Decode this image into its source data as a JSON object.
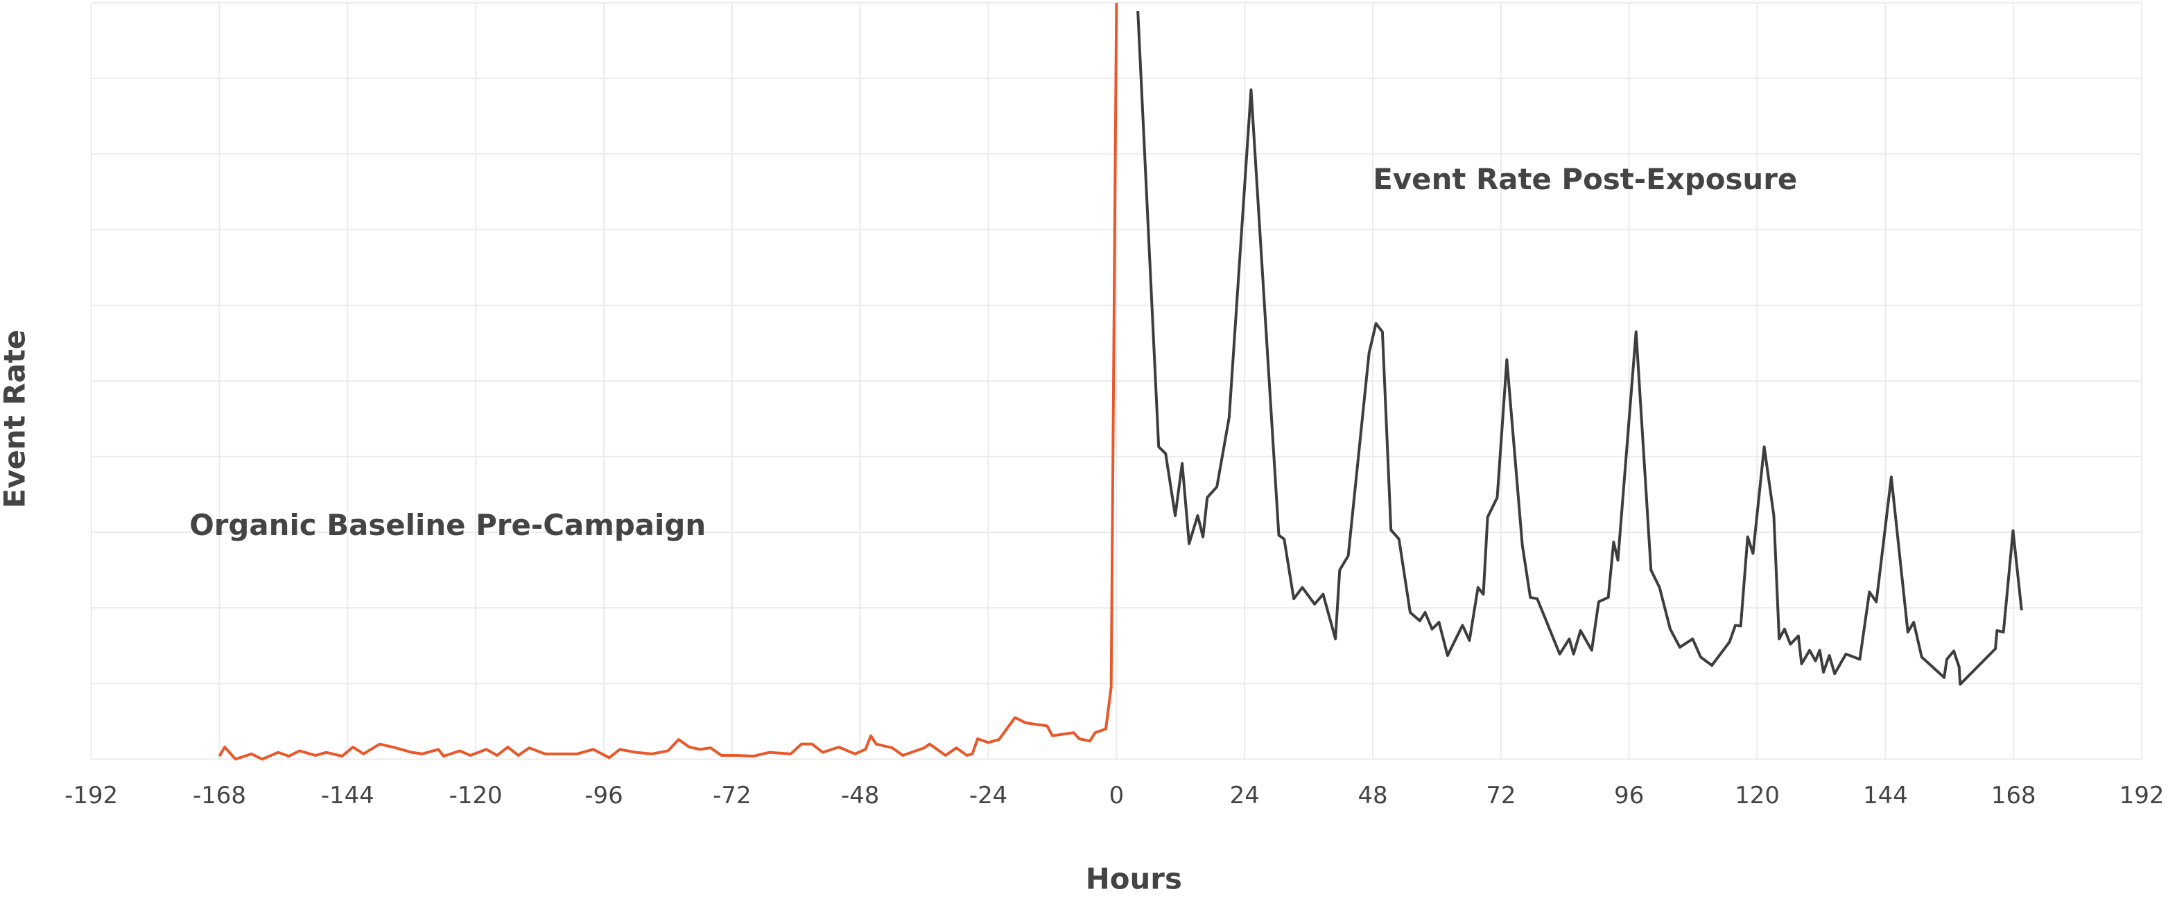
{
  "chart_data": {
    "type": "line",
    "x_label": "Hours",
    "y_label": "Event Rate",
    "xlim": [
      -192,
      192
    ],
    "xticks": [
      -192,
      -168,
      -144,
      -120,
      -96,
      -72,
      -48,
      -24,
      0,
      24,
      48,
      72,
      96,
      120,
      144,
      168,
      192
    ],
    "ylim": [
      0,
      10
    ],
    "yticks": [
      0,
      1,
      2,
      3,
      4,
      5,
      6,
      7,
      8,
      9,
      10
    ],
    "ytick_labels": false,
    "grid": true,
    "series": [
      {
        "name": "Organic Baseline Pre-Campaign",
        "color": "#e8582a",
        "x": [
          -168,
          -167,
          -165,
          -162,
          -160,
          -157,
          -155,
          -153,
          -150,
          -148,
          -145,
          -143,
          -141,
          -138,
          -135,
          -132,
          -130,
          -127,
          -126,
          -123,
          -121,
          -118,
          -116,
          -114,
          -112,
          -110,
          -107,
          -104,
          -101,
          -98,
          -95,
          -93,
          -90,
          -87,
          -84,
          -82,
          -80,
          -78,
          -76,
          -74,
          -71,
          -68,
          -65,
          -61,
          -59,
          -57,
          -55,
          -52,
          -49,
          -47,
          -46,
          -45,
          -42,
          -40,
          -36,
          -35,
          -32,
          -30,
          -28,
          -27,
          -26,
          -24,
          -22,
          -19,
          -17,
          -13,
          -12,
          -8,
          -7,
          -5,
          -4,
          -2,
          -1,
          0
        ],
        "values": [
          0.04,
          0.16,
          0,
          0.07,
          0,
          0.09,
          0.04,
          0.11,
          0.05,
          0.09,
          0.04,
          0.16,
          0.07,
          0.2,
          0.15,
          0.09,
          0.07,
          0.13,
          0.04,
          0.11,
          0.05,
          0.13,
          0.05,
          0.16,
          0.05,
          0.15,
          0.07,
          0.07,
          0.07,
          0.13,
          0.02,
          0.13,
          0.09,
          0.07,
          0.11,
          0.26,
          0.16,
          0.13,
          0.15,
          0.05,
          0.05,
          0.04,
          0.09,
          0.07,
          0.2,
          0.2,
          0.09,
          0.16,
          0.07,
          0.13,
          0.31,
          0.2,
          0.15,
          0.05,
          0.15,
          0.2,
          0.05,
          0.15,
          0.05,
          0.07,
          0.27,
          0.22,
          0.26,
          0.55,
          0.48,
          0.44,
          0.31,
          0.35,
          0.27,
          0.24,
          0.35,
          0.4,
          0.95,
          10
        ]
      },
      {
        "name": "Event Rate Post-Exposure",
        "color": "#3d3d3d",
        "x": [
          4,
          7.9,
          9.2,
          11,
          12.3,
          13.6,
          15.2,
          16.2,
          17,
          18.8,
          21.1,
          25.2,
          30.4,
          31.4,
          33.2,
          34.8,
          37.1,
          38.7,
          41,
          41.8,
          43.4,
          47.3,
          48.6,
          49.8,
          51.4,
          52.9,
          55,
          56.8,
          57.8,
          59.1,
          60.4,
          62,
          64.8,
          66.1,
          67.7,
          68.7,
          69.5,
          71.3,
          73.1,
          76,
          77.5,
          78.8,
          83,
          84.8,
          85.6,
          86.9,
          89,
          90.3,
          92.1,
          93.1,
          93.9,
          97.3,
          100.1,
          101.7,
          103.7,
          105.5,
          107.9,
          109.4,
          111.5,
          114.8,
          115.9,
          116.9,
          118.2,
          119.2,
          121.3,
          123.1,
          124.1,
          125.1,
          126.2,
          127.7,
          128.3,
          129.8,
          130.9,
          131.7,
          132.4,
          133.5,
          134.5,
          136.6,
          139.2,
          141,
          142.3,
          145.1,
          148.2,
          149.3,
          150.8,
          155,
          155.5,
          156.8,
          157.8,
          158,
          164.6,
          164.9,
          166.1,
          167.9,
          169.5
        ],
        "values": [
          9.89,
          4.13,
          4.04,
          3.22,
          3.91,
          2.85,
          3.22,
          2.94,
          3.46,
          3.6,
          4.52,
          8.85,
          2.96,
          2.91,
          2.12,
          2.27,
          2.05,
          2.18,
          1.59,
          2.5,
          2.69,
          5.37,
          5.76,
          5.65,
          3.03,
          2.91,
          1.94,
          1.83,
          1.94,
          1.72,
          1.81,
          1.37,
          1.77,
          1.57,
          2.27,
          2.18,
          3.2,
          3.46,
          5.28,
          2.83,
          2.14,
          2.12,
          1.39,
          1.59,
          1.39,
          1.7,
          1.44,
          2.08,
          2.14,
          2.87,
          2.63,
          5.65,
          2.5,
          2.27,
          1.72,
          1.48,
          1.59,
          1.35,
          1.24,
          1.55,
          1.77,
          1.76,
          2.94,
          2.72,
          4.13,
          3.22,
          1.59,
          1.72,
          1.52,
          1.63,
          1.26,
          1.44,
          1.3,
          1.44,
          1.15,
          1.37,
          1.13,
          1.39,
          1.32,
          2.21,
          2.08,
          3.73,
          1.68,
          1.81,
          1.35,
          1.08,
          1.32,
          1.43,
          1.22,
          0.99,
          1.46,
          1.7,
          1.68,
          3.02,
          1.97
        ]
      }
    ]
  }
}
